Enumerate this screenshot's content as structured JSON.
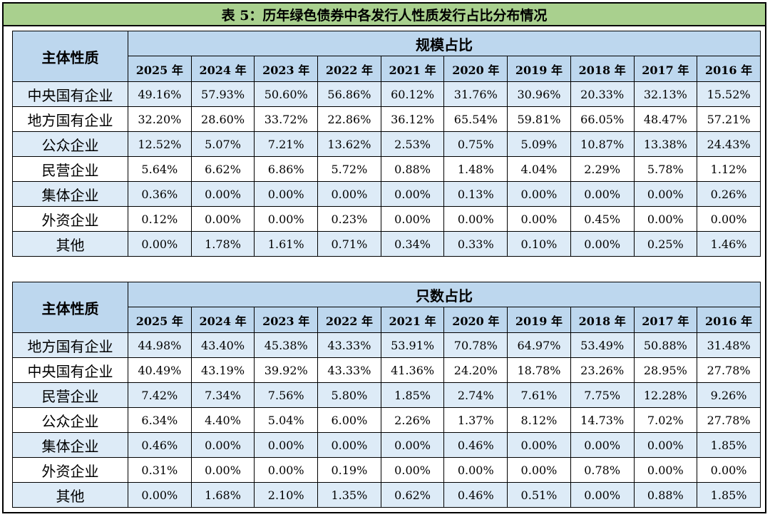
{
  "title": "表 5：历年绿色债券中各发行人性质发行占比分布情况",
  "subject_header": "主体性质",
  "years": [
    "2025 年",
    "2024 年",
    "2023 年",
    "2022 年",
    "2021 年",
    "2020 年",
    "2019 年",
    "2018 年",
    "2017 年",
    "2016 年"
  ],
  "colors": {
    "title_bg": "#a9d08e",
    "header_bg": "#bdd7ee",
    "stripe_bg": "#ddebf7"
  },
  "tables": [
    {
      "group_header": "规模占比",
      "rows": [
        {
          "label": "中央国有企业",
          "values": [
            "49.16%",
            "57.93%",
            "50.60%",
            "56.86%",
            "60.12%",
            "31.76%",
            "30.96%",
            "20.33%",
            "32.13%",
            "15.52%"
          ]
        },
        {
          "label": "地方国有企业",
          "values": [
            "32.20%",
            "28.60%",
            "33.72%",
            "22.86%",
            "36.12%",
            "65.54%",
            "59.81%",
            "66.05%",
            "48.47%",
            "57.21%"
          ]
        },
        {
          "label": "公众企业",
          "values": [
            "12.52%",
            "5.07%",
            "7.21%",
            "13.62%",
            "2.53%",
            "0.75%",
            "5.09%",
            "10.87%",
            "13.38%",
            "24.43%"
          ]
        },
        {
          "label": "民营企业",
          "values": [
            "5.64%",
            "6.62%",
            "6.86%",
            "5.72%",
            "0.88%",
            "1.48%",
            "4.04%",
            "2.29%",
            "5.78%",
            "1.12%"
          ]
        },
        {
          "label": "集体企业",
          "values": [
            "0.36%",
            "0.00%",
            "0.00%",
            "0.00%",
            "0.00%",
            "0.13%",
            "0.00%",
            "0.00%",
            "0.00%",
            "0.26%"
          ]
        },
        {
          "label": "外资企业",
          "values": [
            "0.12%",
            "0.00%",
            "0.00%",
            "0.23%",
            "0.00%",
            "0.00%",
            "0.00%",
            "0.45%",
            "0.00%",
            "0.00%"
          ]
        },
        {
          "label": "其他",
          "values": [
            "0.00%",
            "1.78%",
            "1.61%",
            "0.71%",
            "0.34%",
            "0.33%",
            "0.10%",
            "0.00%",
            "0.25%",
            "1.46%"
          ]
        }
      ]
    },
    {
      "group_header": "只数占比",
      "rows": [
        {
          "label": "地方国有企业",
          "values": [
            "44.98%",
            "43.40%",
            "45.38%",
            "43.33%",
            "53.91%",
            "70.78%",
            "64.97%",
            "53.49%",
            "50.88%",
            "31.48%"
          ]
        },
        {
          "label": "中央国有企业",
          "values": [
            "40.49%",
            "43.19%",
            "39.92%",
            "43.33%",
            "41.36%",
            "24.20%",
            "18.78%",
            "23.26%",
            "28.95%",
            "27.78%"
          ]
        },
        {
          "label": "民营企业",
          "values": [
            "7.42%",
            "7.34%",
            "7.56%",
            "5.80%",
            "1.85%",
            "2.74%",
            "7.61%",
            "7.75%",
            "12.28%",
            "9.26%"
          ]
        },
        {
          "label": "公众企业",
          "values": [
            "6.34%",
            "4.40%",
            "5.04%",
            "6.00%",
            "2.26%",
            "1.37%",
            "8.12%",
            "14.73%",
            "7.02%",
            "27.78%"
          ]
        },
        {
          "label": "集体企业",
          "values": [
            "0.46%",
            "0.00%",
            "0.00%",
            "0.00%",
            "0.00%",
            "0.46%",
            "0.00%",
            "0.00%",
            "0.00%",
            "1.85%"
          ]
        },
        {
          "label": "外资企业",
          "values": [
            "0.31%",
            "0.00%",
            "0.00%",
            "0.19%",
            "0.00%",
            "0.00%",
            "0.00%",
            "0.78%",
            "0.00%",
            "0.00%"
          ]
        },
        {
          "label": "其他",
          "values": [
            "0.00%",
            "1.68%",
            "2.10%",
            "1.35%",
            "0.62%",
            "0.46%",
            "0.51%",
            "0.00%",
            "0.88%",
            "1.85%"
          ]
        }
      ]
    }
  ]
}
